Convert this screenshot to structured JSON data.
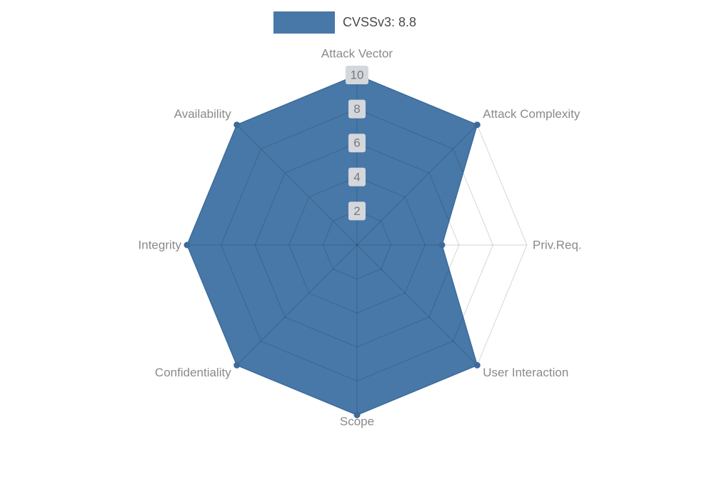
{
  "legend": {
    "label": "CVSSv3: 8.8"
  },
  "chart_data": {
    "type": "radar",
    "title": "CVSSv3: 8.8",
    "categories": [
      "Attack Vector",
      "Attack Complexity",
      "Priv.Req.",
      "User Interaction",
      "Scope",
      "Confidentiality",
      "Integrity",
      "Availability"
    ],
    "series": [
      {
        "name": "CVSSv3: 8.8",
        "values": [
          10,
          10,
          5,
          10,
          10,
          10,
          10,
          10
        ]
      }
    ],
    "axis_range": [
      0,
      10
    ],
    "ticks": [
      2,
      4,
      6,
      8,
      10
    ],
    "grid": true,
    "legend_position": "top-center",
    "colors": {
      "series_fill": "#4878a8",
      "series_stroke": "#3c6b9b",
      "grid_line": "rgba(0,0,0,0.16)",
      "axis_label": "#8a8a8a",
      "tick_text": "#75797e",
      "tick_box": "#d4d7db",
      "legend_text": "#4a4a4a",
      "background": "#ffffff"
    }
  }
}
